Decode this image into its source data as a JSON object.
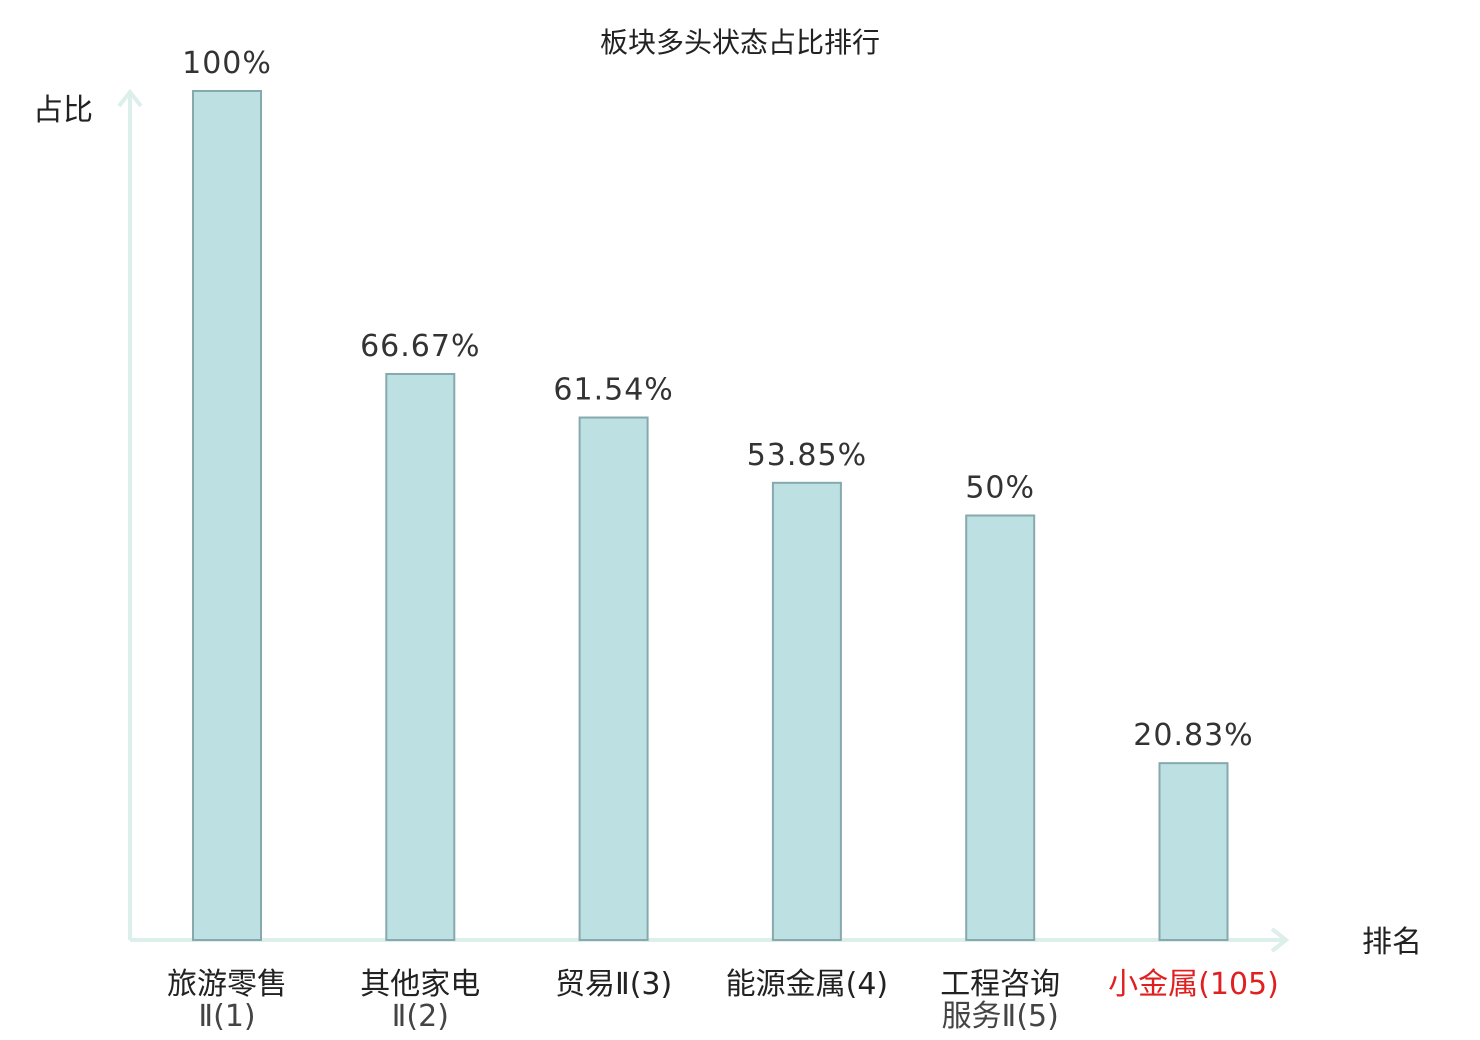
{
  "chart_data": {
    "type": "bar",
    "title": "板块多头状态占比排行",
    "ylabel": "占比",
    "xlabel": "排名",
    "ylim": [
      0,
      100
    ],
    "categories": [
      {
        "line1": "旅游零售",
        "line2": "Ⅱ(1)",
        "highlight": false
      },
      {
        "line1": "其他家电",
        "line2": "Ⅱ(2)",
        "highlight": false
      },
      {
        "line1": "贸易Ⅱ(3)",
        "line2": "",
        "highlight": false
      },
      {
        "line1": "能源金属(4)",
        "line2": "",
        "highlight": false
      },
      {
        "line1": "工程咨询",
        "line2": "服务Ⅱ(5)",
        "highlight": false
      },
      {
        "line1": "小金属(105)",
        "line2": "",
        "highlight": true
      }
    ],
    "values": [
      100,
      66.67,
      61.54,
      53.85,
      50,
      20.83
    ],
    "value_labels": [
      "100%",
      "66.67%",
      "61.54%",
      "53.85%",
      "50%",
      "20.83%"
    ],
    "grid": false,
    "colors": {
      "bar_fill": "#bde0e3",
      "bar_stroke": "#85a9ad",
      "axis": "#dcefeb",
      "highlight": "#e02020"
    }
  }
}
